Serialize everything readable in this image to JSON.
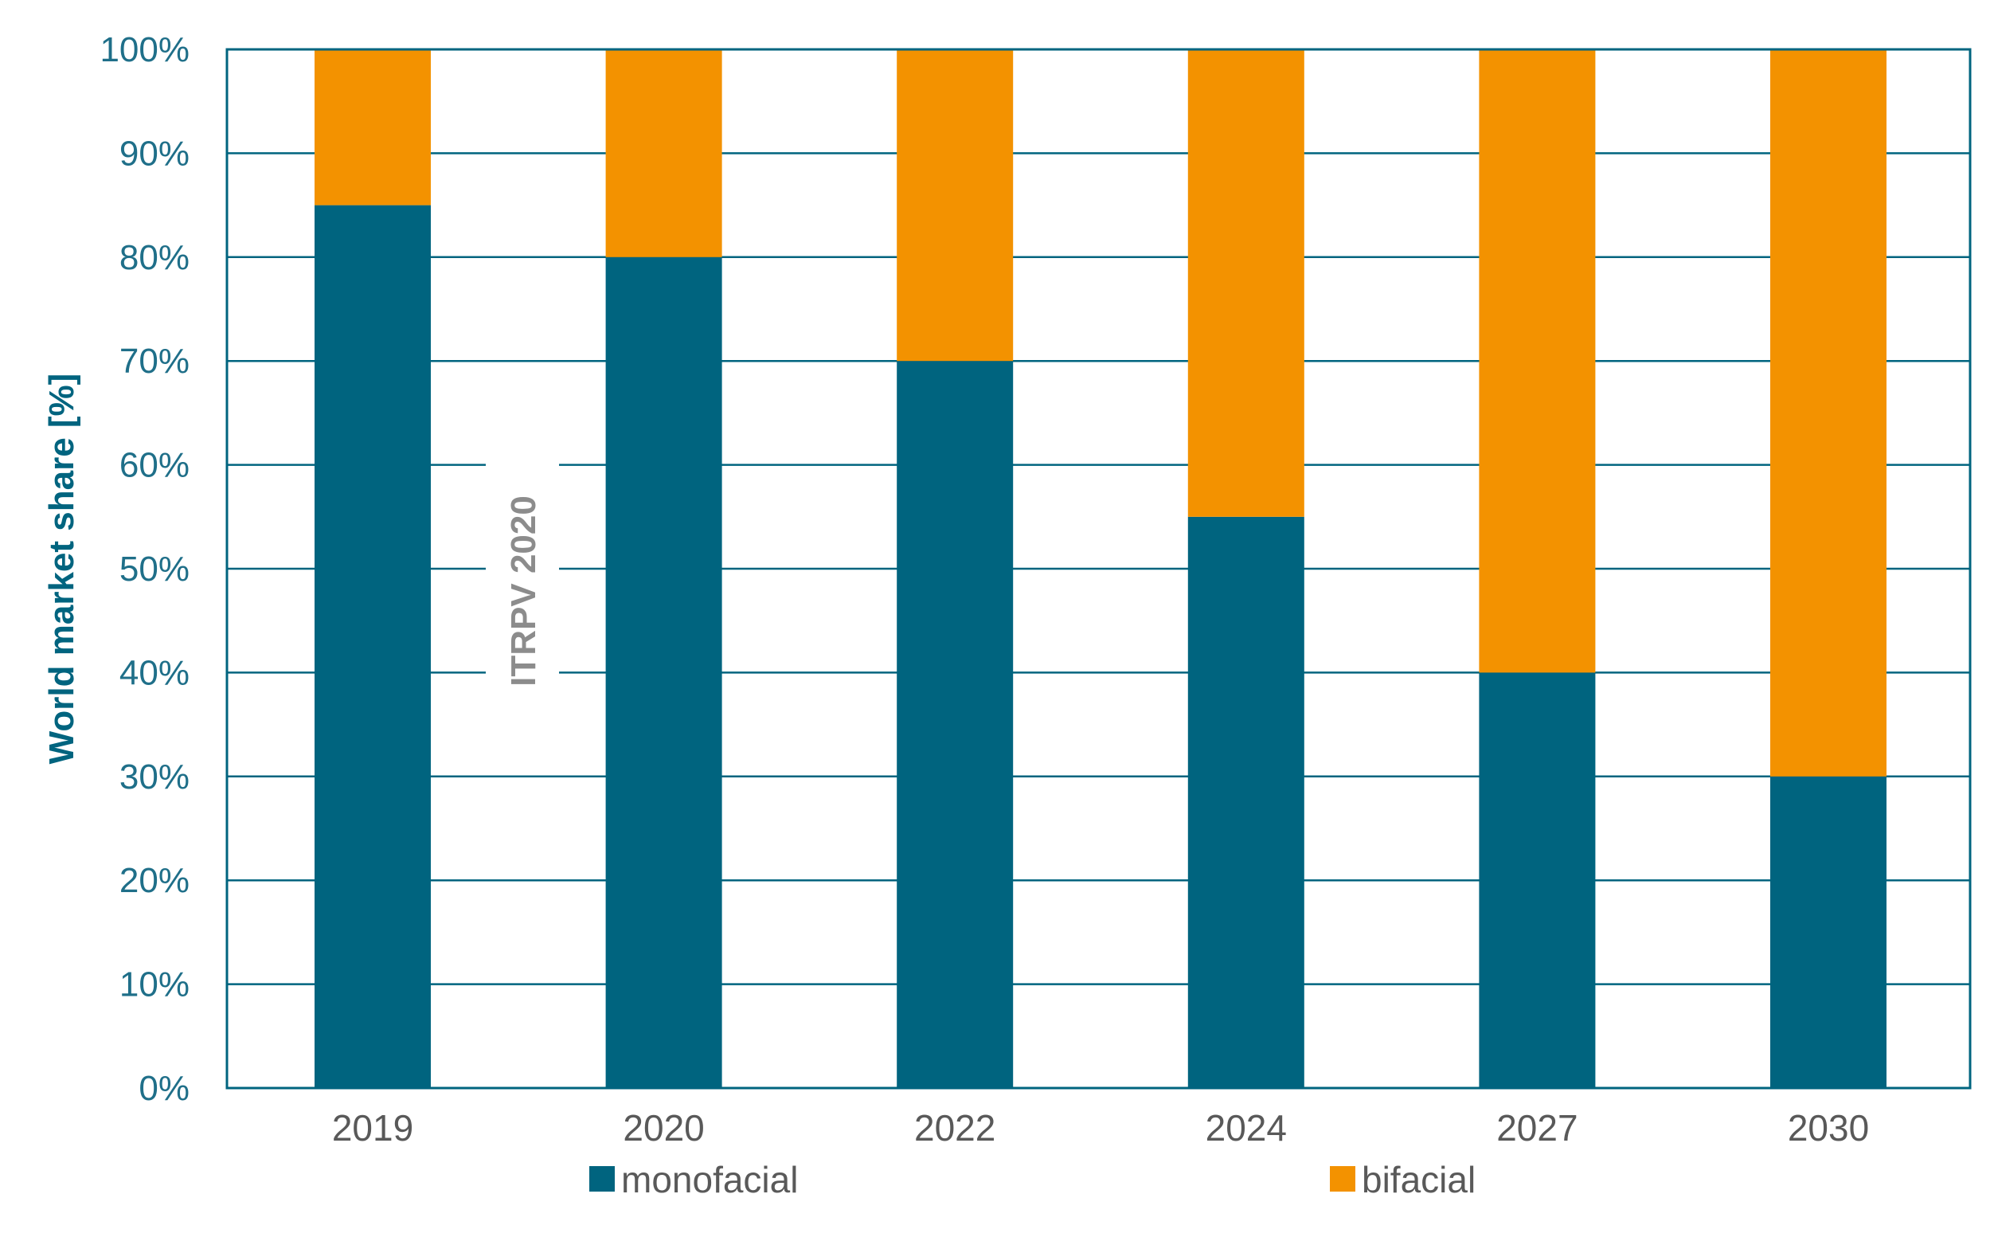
{
  "chart_data": {
    "type": "bar",
    "stacked": true,
    "categories": [
      "2019",
      "2020",
      "2022",
      "2024",
      "2027",
      "2030"
    ],
    "series": [
      {
        "name": "monofacial",
        "color": "#00647f",
        "values": [
          85,
          80,
          70,
          55,
          40,
          30
        ]
      },
      {
        "name": "bifacial",
        "color": "#f39200",
        "values": [
          15,
          20,
          30,
          45,
          60,
          70
        ]
      }
    ],
    "ylabel": "World market share [%]",
    "xlabel": "",
    "ylim": [
      0,
      100
    ],
    "yticks": [
      0,
      10,
      20,
      30,
      40,
      50,
      60,
      70,
      80,
      90,
      100
    ],
    "ytick_suffix": "%",
    "grid": true,
    "legend": "bottom",
    "annotation": "ITRPV 2020"
  },
  "colors": {
    "axis": "#00647f",
    "tick_text": "#1f6f89",
    "ylabel_text": "#00647f",
    "annotation_text": "#8c8c8c",
    "category_text": "#595959"
  }
}
